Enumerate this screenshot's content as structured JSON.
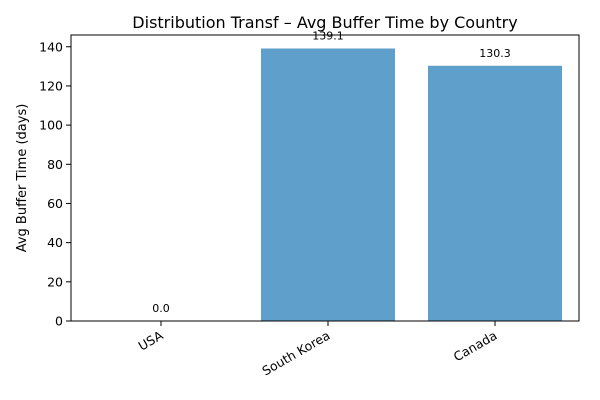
{
  "chart_data": {
    "type": "bar",
    "title": "Distribution Transf – Avg Buffer Time by Country",
    "xlabel": "",
    "ylabel": "Avg Buffer Time (days)",
    "categories": [
      "USA",
      "South Korea",
      "Canada"
    ],
    "values": [
      0.0,
      139.1,
      130.3
    ],
    "data_labels": [
      "0.0",
      "139.1",
      "130.3"
    ],
    "ylim": [
      0,
      146
    ],
    "yticks": [
      0,
      20,
      40,
      60,
      80,
      100,
      120,
      140
    ],
    "bar_color": "#5f9fcb",
    "grid": false,
    "legend": "none"
  }
}
